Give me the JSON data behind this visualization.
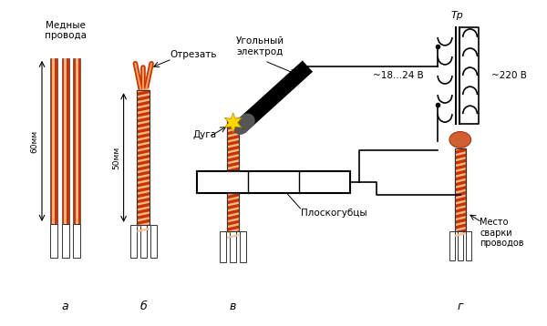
{
  "bg_color": "#ffffff",
  "wire_orange": "#cc3300",
  "wire_light": "#e87040",
  "text_color": "#000000",
  "label_a": "а",
  "label_b": "б",
  "label_v": "в",
  "label_g": "г",
  "text_mednie": "Медные\nпровода",
  "text_otrezat": "Отрезать",
  "text_ugolny": "Угольный\nэлектрод",
  "text_duga": "Дуга",
  "text_ploskogubcy": "Плоскогубцы",
  "text_60mm": "60мм",
  "text_50mm": "50мм",
  "text_voltage1": "~18...24 В",
  "text_voltage2": "~220 В",
  "text_tp": "Тр",
  "text_mesto": "Место\nсварки\nпроводов",
  "figsize": [
    6.0,
    3.58
  ],
  "dpi": 100
}
